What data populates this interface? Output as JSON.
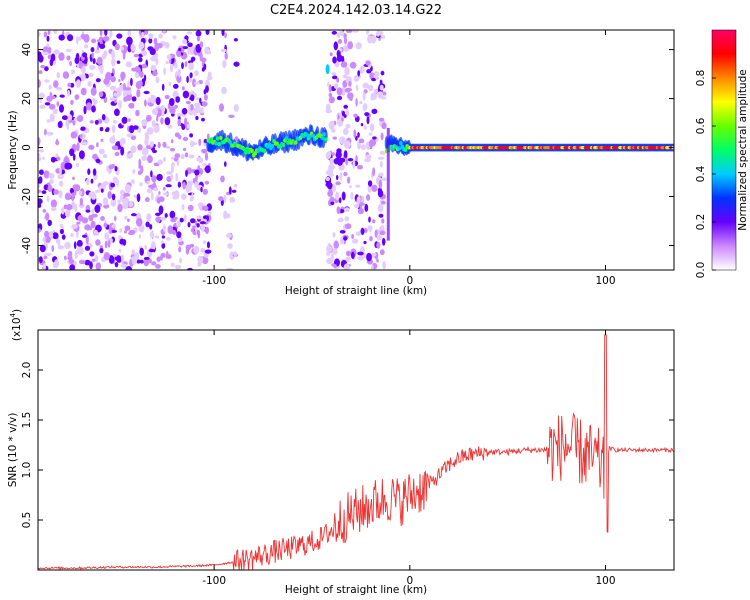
{
  "figure": {
    "title": "C2E4.2024.142.03.14.G22"
  },
  "colors": {
    "snr_line": "#ee3333",
    "axis": "#000000",
    "spectrogram_palette": [
      "#ffffff",
      "#cc88ff",
      "#6600ff",
      "#0033ff",
      "#00ccff",
      "#00ff66",
      "#66ff00",
      "#ffff00",
      "#ff8800",
      "#ff0000",
      "#ff0066"
    ]
  },
  "chart_data": [
    {
      "type": "heatmap",
      "title": "C2E4.2024.142.03.14.G22",
      "xlabel": "Height of straight line (km)",
      "ylabel": "Frequency (Hz)",
      "xlim": [
        -190,
        135
      ],
      "ylim": [
        -50,
        48
      ],
      "xticks": [
        -100,
        0,
        100
      ],
      "xtick_labels": [
        "-100",
        "0",
        "100"
      ],
      "yticks": [
        -40,
        -20,
        0,
        20,
        40
      ],
      "ytick_labels": [
        "-40",
        "-20",
        "0",
        "20",
        "40"
      ],
      "colorbar": {
        "label": "Normalized spectral amplitude",
        "range": [
          0.0,
          1.0
        ],
        "ticks": [
          0.0,
          0.2,
          0.4,
          0.6,
          0.8
        ],
        "tick_labels": [
          "0.0",
          "0.2",
          "0.4",
          "0.6",
          "0.8"
        ]
      },
      "regions": [
        {
          "description": "noise",
          "x_range": [
            -190,
            -102
          ]
        },
        {
          "description": "sparse noise",
          "x_range": [
            -97,
            -88
          ]
        },
        {
          "description": "noise",
          "x_range": [
            -42,
            -13
          ]
        }
      ],
      "signal_track": {
        "x": [
          -103,
          -95,
          -88,
          -80,
          -70,
          -60,
          -50,
          -43,
          -12,
          -8,
          0,
          20,
          40,
          60,
          80,
          100,
          135
        ],
        "y": [
          2,
          3,
          0,
          -2,
          1,
          3,
          5,
          4,
          0,
          1,
          0,
          0,
          0,
          0,
          0,
          0,
          0
        ]
      }
    },
    {
      "type": "line",
      "xlabel": "Height of straight line (km)",
      "ylabel": "SNR (10 * v/v)",
      "y_multiplier_label": "(x10",
      "y_multiplier_exp": "4",
      "xlim": [
        -190,
        135
      ],
      "ylim": [
        0,
        2.4
      ],
      "xticks": [
        -100,
        0,
        100
      ],
      "xtick_labels": [
        "-100",
        "0",
        "100"
      ],
      "yticks": [
        0.5,
        1.0,
        1.5,
        2.0
      ],
      "ytick_labels": [
        "0.5",
        "1.0",
        "1.5",
        "2.0"
      ],
      "series": [
        {
          "x": [
            -190,
            -170,
            -150,
            -130,
            -110,
            -100,
            -90,
            -85,
            -80,
            -75,
            -70,
            -65,
            -60,
            -55,
            -50,
            -45,
            -40,
            -35,
            -30,
            -25,
            -20,
            -15,
            -10,
            -5,
            0,
            5,
            10,
            15,
            20,
            25,
            30,
            40,
            50,
            60,
            70,
            75,
            80,
            85,
            90,
            95,
            98,
            100,
            102,
            105,
            110,
            120,
            135
          ],
          "y": [
            0.02,
            0.02,
            0.03,
            0.03,
            0.04,
            0.05,
            0.08,
            0.1,
            0.12,
            0.15,
            0.18,
            0.2,
            0.22,
            0.25,
            0.28,
            0.32,
            0.4,
            0.5,
            0.55,
            0.6,
            0.65,
            0.7,
            0.72,
            0.68,
            0.75,
            0.8,
            0.85,
            0.95,
            1.05,
            1.12,
            1.15,
            1.18,
            1.18,
            1.2,
            1.2,
            1.22,
            1.25,
            1.2,
            1.15,
            1.1,
            1.05,
            0.9,
            1.22,
            1.2,
            1.2,
            1.2,
            1.2
          ]
        }
      ]
    }
  ]
}
